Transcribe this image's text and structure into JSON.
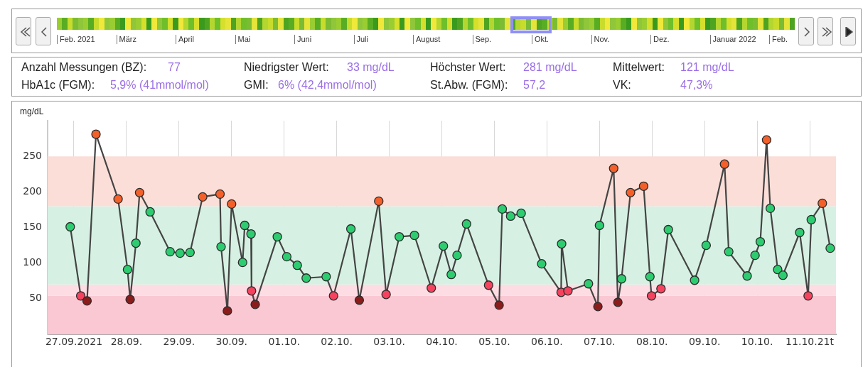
{
  "chart_data": {
    "type": "line",
    "ylabel": "mg/dL",
    "annotations": [
      "Feb. 2021",
      "März",
      "April",
      "Mai",
      "Juni",
      "Juli",
      "August",
      "Sep.",
      "Okt.",
      "Nov.",
      "Dez.",
      "Januar 2022",
      "Feb.",
      "Anzahl Messungen (BZ):",
      "77",
      "Niedrigster Wert:",
      "33 mg/dL",
      "Höchster Wert:",
      "281 mg/dL",
      "Mittelwert:",
      "121 mg/dL",
      "HbA1c (FGM):",
      "5,9% (41mmol/mol)",
      "GMI:",
      "6% (42,4mmol/mol)",
      "St.Abw. (FGM):",
      "57,2",
      "VK:",
      "47,3%"
    ],
    "x": [
      "2021-09-26T22:19",
      "2021-09-27T03:07",
      "2021-09-27T06:00",
      "2021-09-27T10:05",
      "2021-09-27T20:10",
      "2021-09-28T00:29",
      "2021-09-28T01:41",
      "2021-09-28T04:19",
      "2021-09-28T06:00",
      "2021-09-28T10:48",
      "2021-09-28T19:55",
      "2021-09-29T00:29",
      "2021-09-29T05:02",
      "2021-09-29T10:48",
      "2021-09-29T18:43",
      "2021-09-29T19:12",
      "2021-09-29T22:05",
      "2021-09-30T00:00",
      "2021-09-30T05:02",
      "2021-09-30T06:00",
      "2021-09-30T08:53",
      "2021-09-30T09:07",
      "2021-09-30T10:48",
      "2021-09-30T20:53",
      "2021-10-01T01:12",
      "2021-10-01T06:00",
      "2021-10-01T10:05",
      "2021-10-01T19:12",
      "2021-10-01T22:34",
      "2021-10-02T06:29",
      "2021-10-02T10:19",
      "2021-10-02T19:12",
      "2021-10-02T22:34",
      "2021-10-03T04:34",
      "2021-10-03T11:31",
      "2021-10-03T19:12",
      "2021-10-04T00:43",
      "2021-10-04T04:19",
      "2021-10-04T06:58",
      "2021-10-04T11:17",
      "2021-10-04T21:22",
      "2021-10-05T02:10",
      "2021-10-05T03:36",
      "2021-10-05T07:26",
      "2021-10-05T12:14",
      "2021-10-05T21:36",
      "2021-10-06T06:29",
      "2021-10-06T06:43",
      "2021-10-06T09:36",
      "2021-10-06T18:58",
      "2021-10-06T23:17",
      "2021-10-07T00:00",
      "2021-10-07T06:29",
      "2021-10-07T08:24",
      "2021-10-07T10:05",
      "2021-10-07T14:10",
      "2021-10-07T20:10",
      "2021-10-07T23:02",
      "2021-10-07T23:46",
      "2021-10-08T04:05",
      "2021-10-08T07:26",
      "2021-10-08T19:26",
      "2021-10-09T00:43",
      "2021-10-09T09:07",
      "2021-10-09T11:02",
      "2021-10-09T19:26",
      "2021-10-09T23:02",
      "2021-10-10T01:26",
      "2021-10-10T04:19",
      "2021-10-10T06:00",
      "2021-10-10T09:22",
      "2021-10-10T11:46",
      "2021-10-10T19:26",
      "2021-10-10T23:17",
      "2021-10-11T00:43",
      "2021-10-11T05:46",
      "2021-10-11T09:22"
    ],
    "series": [
      {
        "color": "#444444",
        "values": [
          151,
          54,
          47,
          281,
          190,
          91,
          49,
          128,
          199,
          172,
          116,
          114,
          115,
          193,
          197,
          123,
          33,
          183,
          101,
          153,
          141,
          61,
          42,
          137,
          109,
          97,
          79,
          81,
          54,
          148,
          48,
          187,
          56,
          137,
          139,
          65,
          124,
          84,
          111,
          155,
          69,
          41,
          176,
          166,
          170,
          99,
          59,
          127,
          61,
          71,
          39,
          153,
          233,
          45,
          78,
          199,
          208,
          81,
          54,
          64,
          147,
          76,
          125,
          239,
          116,
          82,
          111,
          130,
          273,
          177,
          91,
          83,
          143,
          54,
          161,
          184,
          121
        ],
        "colors": [
          "#2ecc71",
          "#f5435f",
          "#8b1c1c",
          "#f4602a",
          "#f4602a",
          "#2ecc71",
          "#8b1c1c",
          "#2ecc71",
          "#f4602a",
          "#2ecc71",
          "#2ecc71",
          "#2ecc71",
          "#2ecc71",
          "#f4602a",
          "#f4602a",
          "#2ecc71",
          "#8b1c1c",
          "#f4602a",
          "#2ecc71",
          "#2ecc71",
          "#2ecc71",
          "#f5435f",
          "#8b1c1c",
          "#2ecc71",
          "#2ecc71",
          "#2ecc71",
          "#2ecc71",
          "#2ecc71",
          "#f5435f",
          "#2ecc71",
          "#8b1c1c",
          "#f4602a",
          "#f5435f",
          "#2ecc71",
          "#2ecc71",
          "#f5435f",
          "#2ecc71",
          "#2ecc71",
          "#2ecc71",
          "#2ecc71",
          "#f5435f",
          "#8b1c1c",
          "#2ecc71",
          "#2ecc71",
          "#2ecc71",
          "#2ecc71",
          "#f5435f",
          "#2ecc71",
          "#f5435f",
          "#2ecc71",
          "#8b1c1c",
          "#2ecc71",
          "#f4602a",
          "#8b1c1c",
          "#2ecc71",
          "#f4602a",
          "#f4602a",
          "#2ecc71",
          "#f5435f",
          "#f5435f",
          "#2ecc71",
          "#2ecc71",
          "#2ecc71",
          "#f4602a",
          "#2ecc71",
          "#2ecc71",
          "#2ecc71",
          "#2ecc71",
          "#f4602a",
          "#2ecc71",
          "#2ecc71",
          "#2ecc71",
          "#2ecc71",
          "#f5435f",
          "#2ecc71",
          "#f4602a",
          "#2ecc71"
        ]
      }
    ],
    "xlim": [
      "2021-09-26T12:00",
      "2021-10-11T12:00"
    ],
    "xticks": [
      {
        "value": "2021-09-27",
        "label": "27.09.2021"
      },
      {
        "value": "2021-09-28",
        "label": "28.09."
      },
      {
        "value": "2021-09-29",
        "label": "29.09."
      },
      {
        "value": "2021-09-30",
        "label": "30.09."
      },
      {
        "value": "2021-10-01",
        "label": "01.10."
      },
      {
        "value": "2021-10-02",
        "label": "02.10."
      },
      {
        "value": "2021-10-03",
        "label": "03.10."
      },
      {
        "value": "2021-10-04",
        "label": "04.10."
      },
      {
        "value": "2021-10-05",
        "label": "05.10."
      },
      {
        "value": "2021-10-06",
        "label": "06.10."
      },
      {
        "value": "2021-10-07",
        "label": "07.10."
      },
      {
        "value": "2021-10-08",
        "label": "08.10."
      },
      {
        "value": "2021-10-09",
        "label": "09.10."
      },
      {
        "value": "2021-10-10",
        "label": "10.10."
      },
      {
        "value": "2021-10-11",
        "label": "11.10.21t"
      }
    ],
    "ylim": [
      0,
      300
    ],
    "yticks": [
      50,
      100,
      150,
      200,
      250
    ],
    "grid": "x",
    "marker": "circle",
    "line_style": "solid",
    "bands": [
      {
        "axis": "y",
        "from": 0,
        "to": 54,
        "color": "#f9c8d2"
      },
      {
        "axis": "y",
        "from": 54,
        "to": 70,
        "color": "#fddde3"
      },
      {
        "axis": "y",
        "from": 70,
        "to": 180,
        "color": "#d6f1e3"
      },
      {
        "axis": "y",
        "from": 180,
        "to": 250,
        "color": "#fbded7"
      }
    ]
  }
}
